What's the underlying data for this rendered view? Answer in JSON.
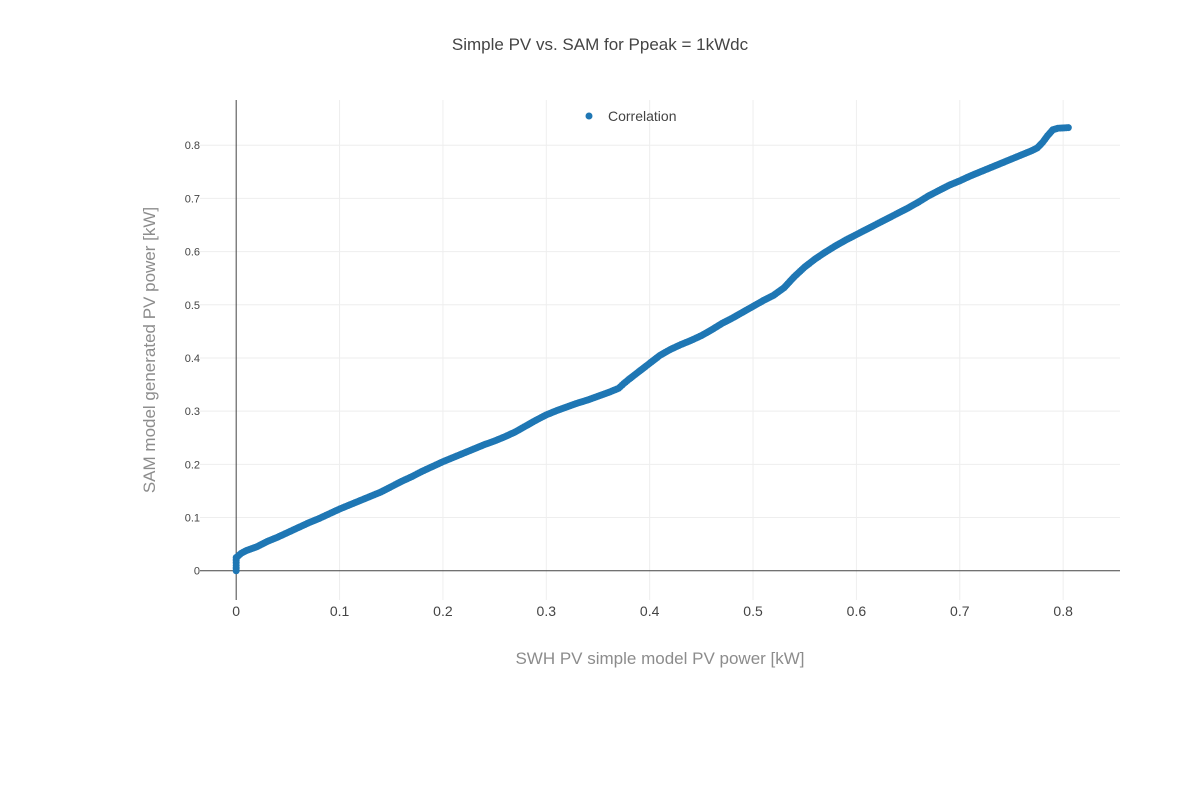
{
  "chart_data": {
    "type": "scatter",
    "title": "Simple PV vs. SAM for Ppeak = 1kWdc",
    "xlabel": "SWH PV simple model PV power [kW]",
    "ylabel": "SAM model generated PV power [kW]",
    "xlim": [
      -0.035,
      0.855
    ],
    "ylim": [
      -0.055,
      0.885
    ],
    "x_ticks": [
      "0",
      "0.1",
      "0.2",
      "0.3",
      "0.4",
      "0.5",
      "0.6",
      "0.7",
      "0.8"
    ],
    "y_ticks": [
      "0",
      "0.1",
      "0.2",
      "0.3",
      "0.4",
      "0.5",
      "0.6",
      "0.7",
      "0.8"
    ],
    "grid": true,
    "legend_position": "top-center",
    "series": [
      {
        "name": "Correlation",
        "color": "#1f77b4",
        "marker": "circle",
        "x": [
          0.0,
          0.0,
          0.0,
          0.0,
          0.0,
          0.0,
          0.002,
          0.005,
          0.01,
          0.02,
          0.03,
          0.04,
          0.05,
          0.06,
          0.07,
          0.08,
          0.09,
          0.1,
          0.11,
          0.12,
          0.13,
          0.14,
          0.15,
          0.16,
          0.17,
          0.18,
          0.19,
          0.2,
          0.21,
          0.22,
          0.23,
          0.24,
          0.25,
          0.26,
          0.27,
          0.28,
          0.29,
          0.3,
          0.31,
          0.32,
          0.33,
          0.34,
          0.35,
          0.36,
          0.37,
          0.375,
          0.38,
          0.39,
          0.4,
          0.41,
          0.42,
          0.43,
          0.44,
          0.45,
          0.46,
          0.47,
          0.48,
          0.49,
          0.5,
          0.51,
          0.52,
          0.53,
          0.54,
          0.55,
          0.56,
          0.57,
          0.58,
          0.59,
          0.6,
          0.61,
          0.62,
          0.63,
          0.64,
          0.65,
          0.66,
          0.67,
          0.68,
          0.69,
          0.7,
          0.71,
          0.72,
          0.73,
          0.74,
          0.75,
          0.76,
          0.77,
          0.775,
          0.78,
          0.785,
          0.79,
          0.795,
          0.805
        ],
        "y": [
          0.0,
          0.005,
          0.01,
          0.015,
          0.02,
          0.025,
          0.028,
          0.033,
          0.038,
          0.045,
          0.055,
          0.063,
          0.072,
          0.081,
          0.09,
          0.098,
          0.107,
          0.116,
          0.124,
          0.132,
          0.14,
          0.148,
          0.158,
          0.168,
          0.177,
          0.187,
          0.196,
          0.205,
          0.213,
          0.221,
          0.229,
          0.237,
          0.244,
          0.252,
          0.261,
          0.272,
          0.283,
          0.293,
          0.301,
          0.308,
          0.315,
          0.321,
          0.328,
          0.335,
          0.343,
          0.352,
          0.36,
          0.375,
          0.39,
          0.405,
          0.416,
          0.425,
          0.433,
          0.442,
          0.453,
          0.465,
          0.475,
          0.486,
          0.497,
          0.508,
          0.518,
          0.532,
          0.553,
          0.571,
          0.586,
          0.599,
          0.611,
          0.622,
          0.632,
          0.642,
          0.652,
          0.662,
          0.672,
          0.682,
          0.693,
          0.705,
          0.715,
          0.725,
          0.733,
          0.742,
          0.75,
          0.758,
          0.766,
          0.774,
          0.782,
          0.79,
          0.795,
          0.805,
          0.818,
          0.829,
          0.832,
          0.833
        ]
      }
    ]
  }
}
